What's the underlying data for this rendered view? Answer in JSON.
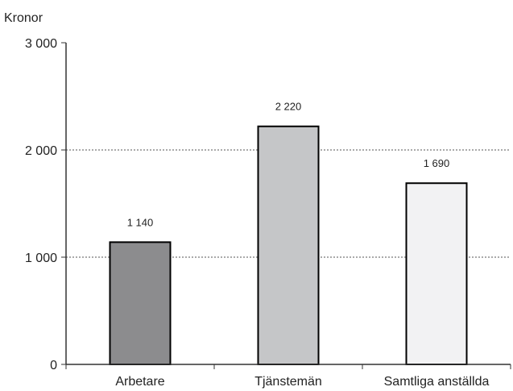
{
  "chart_data": {
    "type": "bar",
    "ylabel": "Kronor",
    "xlabel": "",
    "title": "",
    "ylim": [
      0,
      3000
    ],
    "yticks": [
      {
        "value": 0,
        "label": "0"
      },
      {
        "value": 1000,
        "label": "1 000"
      },
      {
        "value": 2000,
        "label": "2 000"
      },
      {
        "value": 3000,
        "label": "3 000"
      }
    ],
    "grid": "horizontal dotted",
    "legend": "none",
    "categories": [
      "Arbetare",
      "Tjänstemän",
      "Samtliga anställda"
    ],
    "values": [
      1140,
      2220,
      1690
    ],
    "value_labels": [
      "1 140",
      "2 220",
      "1 690"
    ],
    "bar_colors": [
      "#8c8c8e",
      "#c5c6c8",
      "#f2f2f3"
    ],
    "bar_edge_color": "#000000"
  }
}
